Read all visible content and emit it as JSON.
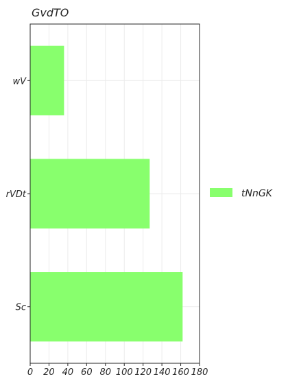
{
  "chart_data": {
    "type": "bar",
    "orientation": "horizontal",
    "title": "GvdTO",
    "xlabel": "",
    "ylabel": "",
    "categories": [
      "wV",
      "rVDt",
      "Sc"
    ],
    "series": [
      {
        "name": "tNnGK",
        "values": [
          36,
          127,
          162
        ],
        "color": "#88ff6d"
      }
    ],
    "xlim": [
      0,
      180
    ],
    "xticks": [
      0,
      20,
      40,
      60,
      80,
      100,
      120,
      140,
      160,
      180
    ],
    "grid": true,
    "legend": "right"
  }
}
